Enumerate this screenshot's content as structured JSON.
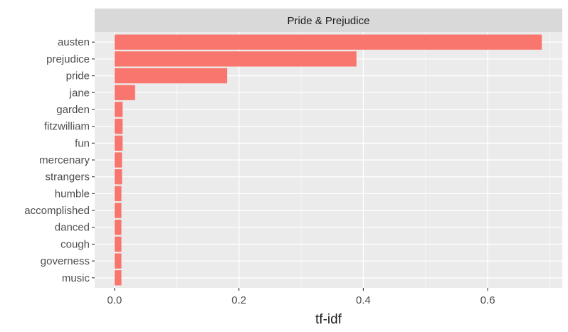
{
  "chart_data": {
    "type": "bar",
    "orientation": "horizontal",
    "facet_title": "Pride & Prejudice",
    "title": "",
    "xlabel": "tf-idf",
    "ylabel": "",
    "categories": [
      "austen",
      "prejudice",
      "pride",
      "jane",
      "garden",
      "fitzwilliam",
      "fun",
      "mercenary",
      "strangers",
      "humble",
      "accomplished",
      "danced",
      "cough",
      "governess",
      "music"
    ],
    "values": [
      0.687,
      0.389,
      0.181,
      0.033,
      0.013,
      0.013,
      0.013,
      0.012,
      0.012,
      0.011,
      0.011,
      0.011,
      0.011,
      0.011,
      0.011
    ],
    "xlim": [
      -0.032,
      0.72
    ],
    "xticks": [
      0.0,
      0.2,
      0.4,
      0.6
    ],
    "xtick_labels": [
      "0.0",
      "0.2",
      "0.4",
      "0.6"
    ],
    "bar_color": "#f8766d",
    "panel_background": "#ebebeb",
    "strip_background": "#d9d9d9",
    "grid": true,
    "legend": "none"
  }
}
